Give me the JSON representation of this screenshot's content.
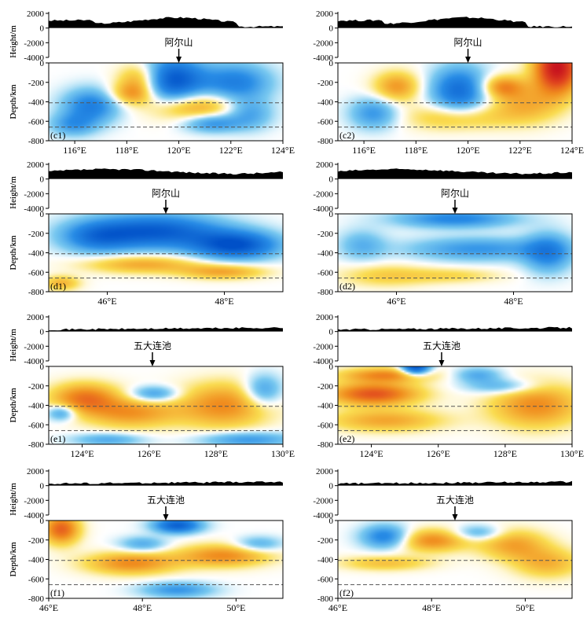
{
  "chart_data": [
    {
      "id": "c1",
      "panel_label": "(c1)",
      "volcano": "阿尔山",
      "volcano_lon": 120.0,
      "xlim": [
        115,
        124
      ],
      "xticks": [
        116,
        118,
        120,
        122,
        124
      ],
      "blobs": [
        [
          0.52,
          0.22,
          0.14,
          0.3,
          -1.0
        ],
        [
          0.4,
          0.2,
          0.1,
          0.22,
          0.6
        ],
        [
          0.8,
          0.25,
          0.15,
          0.25,
          -0.6
        ],
        [
          0.18,
          0.55,
          0.12,
          0.22,
          -0.6
        ],
        [
          0.62,
          0.55,
          0.2,
          0.2,
          0.5
        ],
        [
          0.1,
          0.8,
          0.1,
          0.15,
          -0.4
        ],
        [
          0.86,
          0.65,
          0.1,
          0.2,
          -0.4
        ],
        [
          0.35,
          0.4,
          0.1,
          0.15,
          0.4
        ],
        [
          0.7,
          0.78,
          0.12,
          0.12,
          -0.5
        ]
      ]
    },
    {
      "id": "c2",
      "panel_label": "(c2)",
      "volcano": "阿尔山",
      "volcano_lon": 120.0,
      "xlim": [
        115,
        124
      ],
      "xticks": [
        116,
        118,
        120,
        122,
        124
      ],
      "blobs": [
        [
          0.52,
          0.35,
          0.12,
          0.3,
          -0.75
        ],
        [
          0.94,
          0.05,
          0.1,
          0.35,
          1.0
        ],
        [
          0.25,
          0.3,
          0.1,
          0.2,
          0.45
        ],
        [
          0.5,
          0.7,
          0.2,
          0.18,
          0.35
        ],
        [
          0.15,
          0.65,
          0.1,
          0.2,
          -0.45
        ],
        [
          0.8,
          0.55,
          0.15,
          0.25,
          0.35
        ],
        [
          0.7,
          0.3,
          0.1,
          0.15,
          0.5
        ]
      ]
    },
    {
      "id": "d1",
      "panel_label": "(d1)",
      "volcano": "阿尔山",
      "volcano_lon": 47.0,
      "xlim": [
        45,
        49
      ],
      "xticks": [
        46,
        48
      ],
      "blobs": [
        [
          0.45,
          0.22,
          0.28,
          0.22,
          -0.9
        ],
        [
          0.8,
          0.4,
          0.18,
          0.18,
          -0.95
        ],
        [
          0.2,
          0.3,
          0.15,
          0.2,
          -0.5
        ],
        [
          0.4,
          0.65,
          0.25,
          0.12,
          0.4
        ],
        [
          0.75,
          0.75,
          0.18,
          0.1,
          0.4
        ],
        [
          0.05,
          0.9,
          0.08,
          0.1,
          0.35
        ]
      ]
    },
    {
      "id": "d2",
      "panel_label": "(d2)",
      "volcano": "阿尔山",
      "volcano_lon": 47.0,
      "xlim": [
        45,
        49
      ],
      "xticks": [
        46,
        48
      ],
      "blobs": [
        [
          0.5,
          0.05,
          0.25,
          0.12,
          -0.55
        ],
        [
          0.6,
          0.45,
          0.3,
          0.15,
          -0.45
        ],
        [
          0.9,
          0.5,
          0.1,
          0.25,
          -0.55
        ],
        [
          0.1,
          0.4,
          0.1,
          0.2,
          -0.3
        ],
        [
          0.2,
          0.8,
          0.2,
          0.15,
          0.25
        ],
        [
          0.5,
          0.8,
          0.2,
          0.1,
          0.2
        ]
      ]
    },
    {
      "id": "e1",
      "panel_label": "(e1)",
      "volcano": "五大连池",
      "volcano_lon": 126.1,
      "xlim": [
        123,
        130
      ],
      "xticks": [
        124,
        126,
        128,
        130
      ],
      "blobs": [
        [
          0.15,
          0.4,
          0.15,
          0.2,
          0.55
        ],
        [
          0.75,
          0.5,
          0.2,
          0.3,
          0.5
        ],
        [
          0.35,
          0.6,
          0.2,
          0.2,
          0.45
        ],
        [
          0.45,
          0.35,
          0.1,
          0.1,
          -0.45
        ],
        [
          0.05,
          0.6,
          0.06,
          0.1,
          -0.45
        ],
        [
          0.92,
          0.3,
          0.08,
          0.2,
          -0.45
        ],
        [
          0.85,
          0.95,
          0.2,
          0.1,
          -0.45
        ],
        [
          0.25,
          0.95,
          0.15,
          0.08,
          -0.35
        ]
      ]
    },
    {
      "id": "e2",
      "panel_label": "(e2)",
      "volcano": "五大连池",
      "volcano_lon": 126.1,
      "xlim": [
        123,
        130
      ],
      "xticks": [
        124,
        126,
        128,
        130
      ],
      "blobs": [
        [
          0.33,
          0.0,
          0.06,
          0.1,
          -1.0
        ],
        [
          0.2,
          0.1,
          0.2,
          0.1,
          0.5
        ],
        [
          0.15,
          0.35,
          0.2,
          0.15,
          0.7
        ],
        [
          0.85,
          0.5,
          0.2,
          0.3,
          0.5
        ],
        [
          0.2,
          0.7,
          0.25,
          0.15,
          0.4
        ],
        [
          0.6,
          0.1,
          0.1,
          0.1,
          -0.35
        ],
        [
          0.7,
          0.25,
          0.15,
          0.1,
          -0.35
        ]
      ]
    },
    {
      "id": "f1",
      "panel_label": "(f1)",
      "volcano": "五大连池",
      "volcano_lon": 48.5,
      "xlim": [
        46,
        51
      ],
      "xticks": [
        46,
        48,
        50
      ],
      "blobs": [
        [
          0.05,
          0.1,
          0.08,
          0.2,
          0.65
        ],
        [
          0.55,
          0.05,
          0.1,
          0.1,
          -0.85
        ],
        [
          0.35,
          0.55,
          0.2,
          0.15,
          0.5
        ],
        [
          0.75,
          0.45,
          0.2,
          0.15,
          0.5
        ],
        [
          0.55,
          0.9,
          0.15,
          0.1,
          -0.45
        ],
        [
          0.4,
          0.3,
          0.1,
          0.1,
          -0.35
        ],
        [
          0.9,
          0.3,
          0.1,
          0.1,
          -0.35
        ]
      ]
    },
    {
      "id": "f2",
      "panel_label": "(f2)",
      "volcano": "五大连池",
      "volcano_lon": 48.5,
      "xlim": [
        46,
        51
      ],
      "xticks": [
        46,
        48,
        50
      ],
      "blobs": [
        [
          0.2,
          0.2,
          0.1,
          0.15,
          -0.6
        ],
        [
          0.4,
          0.25,
          0.15,
          0.15,
          0.5
        ],
        [
          0.75,
          0.3,
          0.15,
          0.2,
          0.4
        ],
        [
          0.9,
          0.55,
          0.15,
          0.2,
          0.35
        ],
        [
          0.2,
          0.55,
          0.2,
          0.1,
          0.3
        ],
        [
          0.6,
          0.15,
          0.1,
          0.1,
          -0.35
        ]
      ]
    }
  ],
  "labels": {
    "height_ylabel": "Height/m",
    "depth_ylabel": "Depth/km",
    "height_ticks": [
      "2000",
      "0",
      "-2000",
      "-4000"
    ],
    "depth_ticks": [
      "0",
      "-200",
      "-400",
      "-600",
      "-800"
    ],
    "lon_suffix": "°E"
  },
  "colors": {
    "red": "#c8141e",
    "orange": "#f08c1e",
    "yellow": "#fadc50",
    "blue": "#0050c8",
    "cyan": "#78c8f0",
    "dashed": "#555555",
    "topo": "#000000"
  }
}
